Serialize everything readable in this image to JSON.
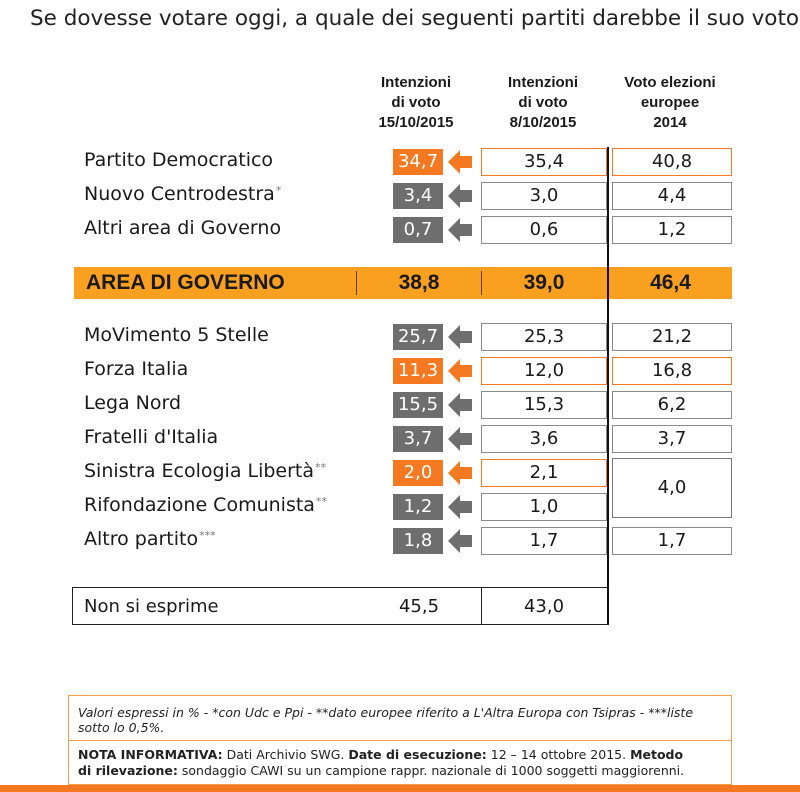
{
  "title": "Se dovesse votare oggi, a quale dei seguenti partiti darebbe il suo voto?",
  "colors": {
    "orange": "#f47920",
    "gray": "#6e6e6e",
    "band": "#f9a020"
  },
  "chart_data": {
    "type": "table",
    "columns": [
      {
        "line1": "Intenzioni",
        "line2": "di voto",
        "line3": "15/10/2015"
      },
      {
        "line1": "Intenzioni",
        "line2": "di voto",
        "line3": "8/10/2015"
      },
      {
        "line1": "Voto elezioni",
        "line2": "europee",
        "line3": "2014"
      }
    ],
    "rows": [
      {
        "label": "Partito Democratico",
        "note": "",
        "cur": "34,7",
        "prev": "35,4",
        "eu": "40,8",
        "trend": "down"
      },
      {
        "label": "Nuovo Centrodestra",
        "note": "*",
        "cur": "3,4",
        "prev": "3,0",
        "eu": "4,4",
        "trend": "up"
      },
      {
        "label": "Altri area di Governo",
        "note": "",
        "cur": "0,7",
        "prev": "0,6",
        "eu": "1,2",
        "trend": "up"
      },
      {
        "label": "MoVimento 5 Stelle",
        "note": "",
        "cur": "25,7",
        "prev": "25,3",
        "eu": "21,2",
        "trend": "up"
      },
      {
        "label": "Forza Italia",
        "note": "",
        "cur": "11,3",
        "prev": "12,0",
        "eu": "16,8",
        "trend": "down"
      },
      {
        "label": "Lega Nord",
        "note": "",
        "cur": "15,5",
        "prev": "15,3",
        "eu": "6,2",
        "trend": "up"
      },
      {
        "label": "Fratelli d'Italia",
        "note": "",
        "cur": "3,7",
        "prev": "3,6",
        "eu": "3,7",
        "trend": "up"
      },
      {
        "label": "Sinistra Ecologia Libertà",
        "note": "**",
        "cur": "2,0",
        "prev": "2,1",
        "eu": "4,0",
        "trend": "down"
      },
      {
        "label": "Rifondazione Comunista",
        "note": "**",
        "cur": "1,2",
        "prev": "1,0",
        "eu": "4,0",
        "trend": "up"
      },
      {
        "label": "Altro partito",
        "note": "***",
        "cur": "1,8",
        "prev": "1,7",
        "eu": "1,7",
        "trend": "up"
      }
    ],
    "area_governo": {
      "label": "AREA DI GOVERNO",
      "cur": "38,8",
      "prev": "39,0",
      "eu": "46,4"
    },
    "non_si_esprime": {
      "label": "Non si esprime",
      "cur": "45,5",
      "prev": "43,0"
    }
  },
  "notes": {
    "values_line1": "Valori espressi in % - *con Udc e Ppi - **dato europee riferito a L'Altra Europa con Tsipras - ***liste",
    "values_line2": "sotto lo 0,5%.",
    "nota_label": "NOTA INFORMATIVA:",
    "nota_text": " Dati Archivio SWG. ",
    "date_label": "Date di esecuzione:",
    "date_text": " 12 – 14 ottobre 2015. ",
    "metodo_label": "Metodo",
    "ril_label": "di rilevazione:",
    "ril_text": " sondaggio CAWI su un campione rappr. nazionale di 1000 soggetti maggiorenni."
  }
}
